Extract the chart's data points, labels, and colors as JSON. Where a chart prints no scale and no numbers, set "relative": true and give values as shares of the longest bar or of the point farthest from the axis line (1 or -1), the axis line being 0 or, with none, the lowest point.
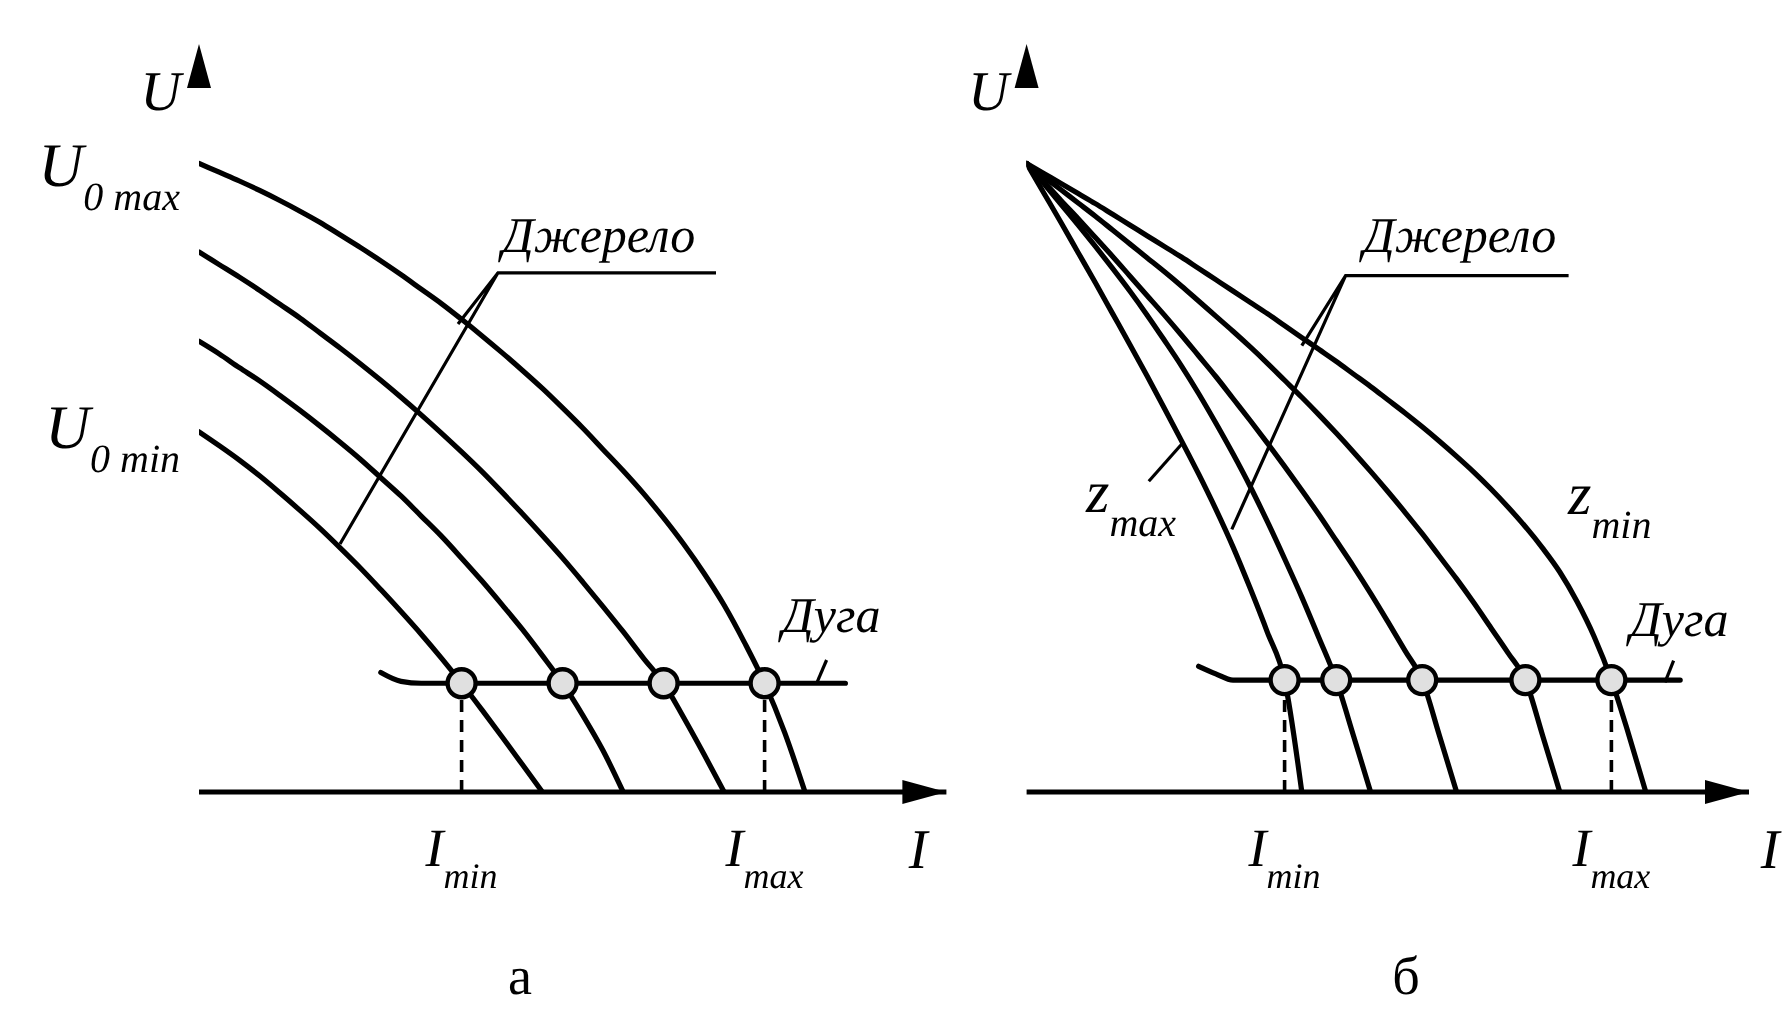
{
  "chart_data": [
    {
      "type": "line",
      "title": "а",
      "xlabel": "I",
      "ylabel": "U",
      "relative": true,
      "categories": [
        null,
        null,
        null,
        null,
        null,
        null,
        null,
        null,
        null,
        null,
        null,
        null,
        null,
        "I$_{min}$",
        null,
        null,
        null,
        null,
        null,
        null,
        null,
        null,
        null,
        null,
        null,
        null,
        null,
        null,
        "I$_{max}$",
        null,
        null,
        null,
        null,
        null,
        null,
        null,
        null,
        null
      ],
      "series": [
        {
          "color": "#000000",
          "values": [
            1.0,
            0.986,
            0.972,
            0.957,
            0.941,
            0.924,
            0.906,
            0.886,
            0.866,
            0.845,
            0.823,
            0.8,
            0.777,
            0.752,
            0.726,
            0.699,
            0.671,
            0.642,
            0.611,
            0.579,
            0.545,
            0.511,
            0.475,
            0.436,
            0.394,
            0.348,
            0.297,
            0.238,
            0.173,
            0.094,
            0.0,
            null,
            null,
            null,
            null,
            null,
            null,
            null
          ]
        },
        {
          "color": "#000000",
          "values": [
            0.859,
            0.839,
            0.819,
            0.798,
            0.776,
            0.754,
            0.73,
            0.706,
            0.681,
            0.655,
            0.628,
            0.6,
            0.571,
            0.541,
            0.51,
            0.477,
            0.443,
            0.408,
            0.372,
            0.334,
            0.295,
            0.255,
            0.213,
            0.173,
            0.118,
            0.06,
            0.0,
            null,
            null,
            null,
            null,
            null,
            null,
            null,
            null,
            null,
            null,
            null
          ]
        },
        {
          "color": "#000000",
          "values": [
            0.717,
            0.697,
            0.675,
            0.654,
            0.631,
            0.607,
            0.582,
            0.556,
            0.529,
            0.5,
            0.471,
            0.439,
            0.407,
            0.372,
            0.336,
            0.298,
            0.259,
            0.217,
            0.173,
            0.122,
            0.066,
            0.0,
            null,
            null,
            null,
            null,
            null,
            null,
            null,
            null,
            null,
            null,
            null,
            null,
            null,
            null,
            null,
            null
          ]
        },
        {
          "color": "#000000",
          "values": [
            0.573,
            0.551,
            0.528,
            0.503,
            0.476,
            0.448,
            0.419,
            0.388,
            0.356,
            0.322,
            0.287,
            0.251,
            0.213,
            0.173,
            0.131,
            0.088,
            0.044,
            0.0,
            null,
            null,
            null,
            null,
            null,
            null,
            null,
            null,
            null,
            null,
            null,
            null,
            null,
            null,
            null,
            null,
            null,
            null,
            null,
            null
          ]
        },
        {
          "color": "#000000",
          "values": [
            null,
            null,
            null,
            null,
            null,
            null,
            null,
            null,
            null,
            0.19,
            0.176,
            0.173,
            0.173,
            0.173,
            0.173,
            0.173,
            0.173,
            0.173,
            0.173,
            0.173,
            0.173,
            0.173,
            0.173,
            0.173,
            0.173,
            0.173,
            0.173,
            0.173,
            0.173,
            0.173,
            0.173,
            0.173,
            0.173,
            null,
            null,
            null,
            null,
            null
          ]
        },
        {
          "type": "lollipop",
          "color": "#e0e0e0",
          "line_style": "dashed",
          "values": [
            null,
            null,
            null,
            null,
            null,
            null,
            null,
            null,
            null,
            null,
            null,
            null,
            null,
            0.173,
            null,
            null,
            null,
            null,
            null,
            null,
            null,
            null,
            null,
            null,
            null,
            null,
            null,
            null,
            0.173,
            null,
            null,
            null,
            null,
            null,
            null,
            null,
            null,
            null
          ]
        },
        {
          "type": "scatter",
          "color": "#e0e0e0",
          "values": [
            null,
            null,
            null,
            null,
            null,
            null,
            null,
            null,
            null,
            null,
            null,
            null,
            null,
            null,
            null,
            null,
            null,
            null,
            0.173,
            null,
            null,
            null,
            null,
            0.173,
            null,
            null,
            null,
            null,
            null,
            null,
            null,
            null,
            null,
            null,
            null,
            null,
            null,
            null
          ]
        }
      ],
      "annotations": [
        "U$_{0 max}$",
        "U$_{0 min}$",
        "Джерело",
        "Дуга"
      ]
    },
    {
      "type": "line",
      "title": "б",
      "xlabel": "I",
      "ylabel": "U",
      "relative": true,
      "categories": [
        null,
        null,
        null,
        null,
        null,
        null,
        null,
        null,
        null,
        null,
        null,
        null,
        null,
        null,
        null,
        "I$_{min}$",
        null,
        null,
        null,
        null,
        null,
        null,
        null,
        null,
        null,
        null,
        null,
        null,
        null,
        null,
        null,
        null,
        null,
        null,
        "I$_{max}$",
        null,
        null,
        null,
        null,
        null,
        null,
        null,
        null
      ],
      "series": [
        {
          "color": "#000000",
          "values": [
            1.0,
            0.984,
            0.968,
            0.952,
            0.936,
            0.919,
            0.902,
            0.885,
            0.868,
            0.851,
            0.833,
            0.815,
            0.797,
            0.779,
            0.761,
            0.742,
            0.723,
            0.704,
            0.685,
            0.665,
            0.645,
            0.624,
            0.603,
            0.581,
            0.558,
            0.534,
            0.509,
            0.482,
            0.453,
            0.422,
            0.388,
            0.35,
            0.303,
            0.247,
            0.178,
            0.092,
            0.0,
            null,
            null,
            null,
            null,
            null,
            null
          ]
        },
        {
          "color": "#000000",
          "values": [
            1.0,
            0.979,
            0.958,
            0.937,
            0.916,
            0.894,
            0.872,
            0.85,
            0.828,
            0.805,
            0.781,
            0.757,
            0.733,
            0.708,
            0.682,
            0.655,
            0.628,
            0.6,
            0.571,
            0.541,
            0.51,
            0.478,
            0.445,
            0.411,
            0.375,
            0.339,
            0.301,
            0.261,
            0.221,
            0.178,
            0.09,
            0.0,
            null,
            null,
            null,
            null,
            null,
            null,
            null,
            null,
            null,
            null,
            null
          ]
        },
        {
          "color": "#000000",
          "values": [
            1.0,
            0.971,
            0.941,
            0.912,
            0.882,
            0.852,
            0.821,
            0.79,
            0.759,
            0.727,
            0.694,
            0.661,
            0.626,
            0.591,
            0.555,
            0.518,
            0.48,
            0.441,
            0.4,
            0.359,
            0.316,
            0.271,
            0.225,
            0.178,
            0.09,
            0.0,
            null,
            null,
            null,
            null,
            null,
            null,
            null,
            null,
            null,
            null,
            null,
            null,
            null,
            null,
            null,
            null,
            null
          ]
        },
        {
          "color": "#000000",
          "values": [
            1.0,
            0.968,
            0.935,
            0.902,
            0.868,
            0.833,
            0.797,
            0.759,
            0.719,
            0.678,
            0.634,
            0.587,
            0.538,
            0.486,
            0.43,
            0.371,
            0.31,
            0.245,
            0.178,
            0.09,
            0.0,
            null,
            null,
            null,
            null,
            null,
            null,
            null,
            null,
            null,
            null,
            null,
            null,
            null,
            null,
            null,
            null,
            null,
            null,
            null,
            null,
            null,
            null
          ]
        },
        {
          "color": "#000000",
          "values": [
            1.0,
            0.953,
            0.906,
            0.858,
            0.81,
            0.761,
            0.712,
            0.662,
            0.611,
            0.559,
            0.506,
            0.45,
            0.39,
            0.324,
            0.254,
            0.178,
            0.0,
            null,
            null,
            null,
            null,
            null,
            null,
            null,
            null,
            null,
            null,
            null,
            null,
            null,
            null,
            null,
            null,
            null,
            null,
            null,
            null,
            null,
            null,
            null,
            null,
            null,
            null
          ]
        },
        {
          "color": "#000000",
          "values": [
            null,
            null,
            null,
            null,
            null,
            null,
            null,
            null,
            null,
            null,
            0.2,
            0.188,
            0.178,
            0.178,
            0.178,
            0.178,
            0.178,
            0.178,
            0.178,
            0.178,
            0.178,
            0.178,
            0.178,
            0.178,
            0.178,
            0.178,
            0.178,
            0.178,
            0.178,
            0.178,
            0.178,
            0.178,
            0.178,
            0.178,
            0.178,
            0.178,
            0.178,
            0.178,
            0.178,
            null,
            null,
            null,
            null
          ]
        },
        {
          "type": "lollipop",
          "color": "#e0e0e0",
          "line_style": "dashed",
          "values": [
            null,
            null,
            null,
            null,
            null,
            null,
            null,
            null,
            null,
            null,
            null,
            null,
            null,
            null,
            null,
            0.178,
            null,
            null,
            null,
            null,
            null,
            null,
            null,
            null,
            null,
            null,
            null,
            null,
            null,
            null,
            null,
            null,
            null,
            null,
            0.178,
            null,
            null,
            null,
            null,
            null,
            null,
            null,
            null
          ]
        },
        {
          "type": "scatter",
          "color": "#e0e0e0",
          "values": [
            null,
            null,
            null,
            null,
            null,
            null,
            null,
            null,
            null,
            null,
            null,
            null,
            null,
            null,
            null,
            null,
            null,
            null,
            0.178,
            null,
            null,
            null,
            null,
            0.178,
            null,
            null,
            null,
            null,
            null,
            0.178,
            null,
            null,
            null,
            null,
            null,
            null,
            null,
            null,
            null,
            null,
            null,
            null,
            null
          ]
        }
      ],
      "annotations": [
        "Джерело",
        "z$_{max}$",
        "z$_{min}$",
        "Дуга"
      ]
    }
  ]
}
